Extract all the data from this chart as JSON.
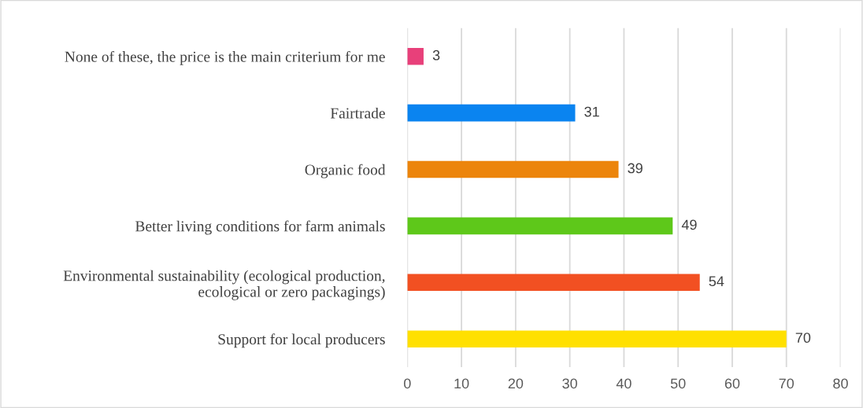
{
  "chart_data": {
    "type": "bar",
    "orientation": "horizontal",
    "categories": [
      "None of these, the price is the main criterium for me",
      "Fairtrade",
      "Organic food",
      "Better living conditions for farm animals",
      "Environmental sustainability (ecological production,\necological or zero packagings)",
      "Support for local producers"
    ],
    "values": [
      3,
      31,
      39,
      49,
      54,
      70
    ],
    "colors": [
      "#e8407a",
      "#0a84f0",
      "#ec850c",
      "#5ec81a",
      "#f25022",
      "#ffe000"
    ],
    "xlim": [
      0,
      80
    ],
    "xticks": [
      0,
      10,
      20,
      30,
      40,
      50,
      60,
      70,
      80
    ],
    "grid": "x",
    "data_labels": true
  }
}
